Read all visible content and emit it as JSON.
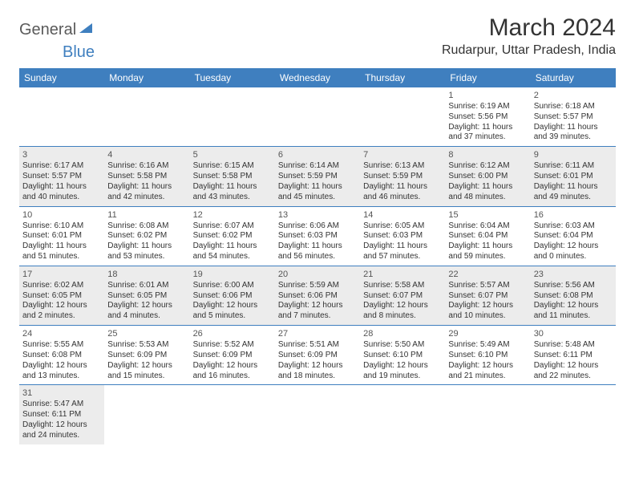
{
  "logo": {
    "text1": "General",
    "text2": "Blue"
  },
  "title": "March 2024",
  "location": "Rudarpur, Uttar Pradesh, India",
  "colors": {
    "header_bg": "#3f7fbf",
    "alt_bg": "#ececec",
    "border": "#3f7fbf"
  },
  "daysOfWeek": [
    "Sunday",
    "Monday",
    "Tuesday",
    "Wednesday",
    "Thursday",
    "Friday",
    "Saturday"
  ],
  "weeks": [
    [
      {
        "empty": true
      },
      {
        "empty": true
      },
      {
        "empty": true
      },
      {
        "empty": true
      },
      {
        "empty": true
      },
      {
        "num": "1",
        "sunrise": "Sunrise: 6:19 AM",
        "sunset": "Sunset: 5:56 PM",
        "daylight": "Daylight: 11 hours and 37 minutes."
      },
      {
        "num": "2",
        "sunrise": "Sunrise: 6:18 AM",
        "sunset": "Sunset: 5:57 PM",
        "daylight": "Daylight: 11 hours and 39 minutes."
      }
    ],
    [
      {
        "num": "3",
        "sunrise": "Sunrise: 6:17 AM",
        "sunset": "Sunset: 5:57 PM",
        "daylight": "Daylight: 11 hours and 40 minutes."
      },
      {
        "num": "4",
        "sunrise": "Sunrise: 6:16 AM",
        "sunset": "Sunset: 5:58 PM",
        "daylight": "Daylight: 11 hours and 42 minutes."
      },
      {
        "num": "5",
        "sunrise": "Sunrise: 6:15 AM",
        "sunset": "Sunset: 5:58 PM",
        "daylight": "Daylight: 11 hours and 43 minutes."
      },
      {
        "num": "6",
        "sunrise": "Sunrise: 6:14 AM",
        "sunset": "Sunset: 5:59 PM",
        "daylight": "Daylight: 11 hours and 45 minutes."
      },
      {
        "num": "7",
        "sunrise": "Sunrise: 6:13 AM",
        "sunset": "Sunset: 5:59 PM",
        "daylight": "Daylight: 11 hours and 46 minutes."
      },
      {
        "num": "8",
        "sunrise": "Sunrise: 6:12 AM",
        "sunset": "Sunset: 6:00 PM",
        "daylight": "Daylight: 11 hours and 48 minutes."
      },
      {
        "num": "9",
        "sunrise": "Sunrise: 6:11 AM",
        "sunset": "Sunset: 6:01 PM",
        "daylight": "Daylight: 11 hours and 49 minutes."
      }
    ],
    [
      {
        "num": "10",
        "sunrise": "Sunrise: 6:10 AM",
        "sunset": "Sunset: 6:01 PM",
        "daylight": "Daylight: 11 hours and 51 minutes."
      },
      {
        "num": "11",
        "sunrise": "Sunrise: 6:08 AM",
        "sunset": "Sunset: 6:02 PM",
        "daylight": "Daylight: 11 hours and 53 minutes."
      },
      {
        "num": "12",
        "sunrise": "Sunrise: 6:07 AM",
        "sunset": "Sunset: 6:02 PM",
        "daylight": "Daylight: 11 hours and 54 minutes."
      },
      {
        "num": "13",
        "sunrise": "Sunrise: 6:06 AM",
        "sunset": "Sunset: 6:03 PM",
        "daylight": "Daylight: 11 hours and 56 minutes."
      },
      {
        "num": "14",
        "sunrise": "Sunrise: 6:05 AM",
        "sunset": "Sunset: 6:03 PM",
        "daylight": "Daylight: 11 hours and 57 minutes."
      },
      {
        "num": "15",
        "sunrise": "Sunrise: 6:04 AM",
        "sunset": "Sunset: 6:04 PM",
        "daylight": "Daylight: 11 hours and 59 minutes."
      },
      {
        "num": "16",
        "sunrise": "Sunrise: 6:03 AM",
        "sunset": "Sunset: 6:04 PM",
        "daylight": "Daylight: 12 hours and 0 minutes."
      }
    ],
    [
      {
        "num": "17",
        "sunrise": "Sunrise: 6:02 AM",
        "sunset": "Sunset: 6:05 PM",
        "daylight": "Daylight: 12 hours and 2 minutes."
      },
      {
        "num": "18",
        "sunrise": "Sunrise: 6:01 AM",
        "sunset": "Sunset: 6:05 PM",
        "daylight": "Daylight: 12 hours and 4 minutes."
      },
      {
        "num": "19",
        "sunrise": "Sunrise: 6:00 AM",
        "sunset": "Sunset: 6:06 PM",
        "daylight": "Daylight: 12 hours and 5 minutes."
      },
      {
        "num": "20",
        "sunrise": "Sunrise: 5:59 AM",
        "sunset": "Sunset: 6:06 PM",
        "daylight": "Daylight: 12 hours and 7 minutes."
      },
      {
        "num": "21",
        "sunrise": "Sunrise: 5:58 AM",
        "sunset": "Sunset: 6:07 PM",
        "daylight": "Daylight: 12 hours and 8 minutes."
      },
      {
        "num": "22",
        "sunrise": "Sunrise: 5:57 AM",
        "sunset": "Sunset: 6:07 PM",
        "daylight": "Daylight: 12 hours and 10 minutes."
      },
      {
        "num": "23",
        "sunrise": "Sunrise: 5:56 AM",
        "sunset": "Sunset: 6:08 PM",
        "daylight": "Daylight: 12 hours and 11 minutes."
      }
    ],
    [
      {
        "num": "24",
        "sunrise": "Sunrise: 5:55 AM",
        "sunset": "Sunset: 6:08 PM",
        "daylight": "Daylight: 12 hours and 13 minutes."
      },
      {
        "num": "25",
        "sunrise": "Sunrise: 5:53 AM",
        "sunset": "Sunset: 6:09 PM",
        "daylight": "Daylight: 12 hours and 15 minutes."
      },
      {
        "num": "26",
        "sunrise": "Sunrise: 5:52 AM",
        "sunset": "Sunset: 6:09 PM",
        "daylight": "Daylight: 12 hours and 16 minutes."
      },
      {
        "num": "27",
        "sunrise": "Sunrise: 5:51 AM",
        "sunset": "Sunset: 6:09 PM",
        "daylight": "Daylight: 12 hours and 18 minutes."
      },
      {
        "num": "28",
        "sunrise": "Sunrise: 5:50 AM",
        "sunset": "Sunset: 6:10 PM",
        "daylight": "Daylight: 12 hours and 19 minutes."
      },
      {
        "num": "29",
        "sunrise": "Sunrise: 5:49 AM",
        "sunset": "Sunset: 6:10 PM",
        "daylight": "Daylight: 12 hours and 21 minutes."
      },
      {
        "num": "30",
        "sunrise": "Sunrise: 5:48 AM",
        "sunset": "Sunset: 6:11 PM",
        "daylight": "Daylight: 12 hours and 22 minutes."
      }
    ],
    [
      {
        "num": "31",
        "sunrise": "Sunrise: 5:47 AM",
        "sunset": "Sunset: 6:11 PM",
        "daylight": "Daylight: 12 hours and 24 minutes."
      },
      {
        "empty": true
      },
      {
        "empty": true
      },
      {
        "empty": true
      },
      {
        "empty": true
      },
      {
        "empty": true
      },
      {
        "empty": true
      }
    ]
  ]
}
